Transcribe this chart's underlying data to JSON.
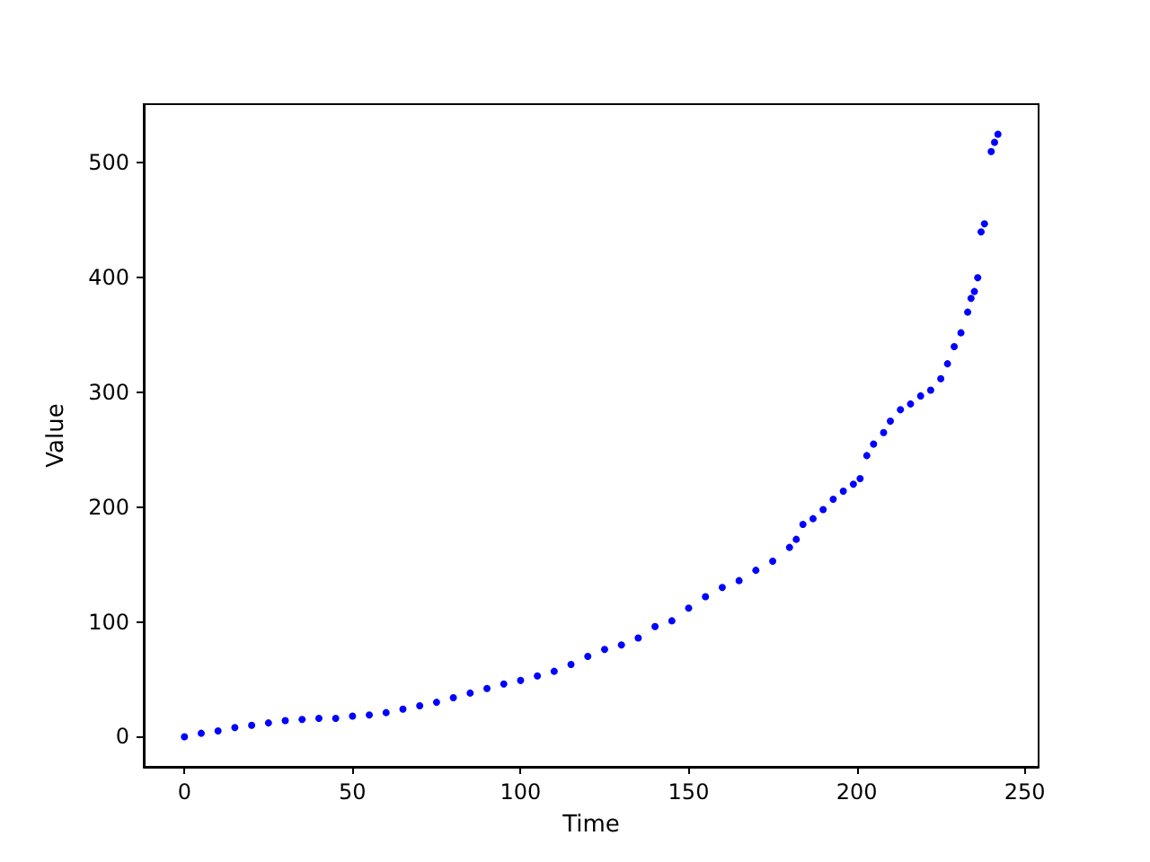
{
  "chart_data": {
    "type": "scatter",
    "xlabel": "Time",
    "ylabel": "Value",
    "color": "#0000ff",
    "marker": "circle",
    "xlim": [
      -12.1,
      254.1
    ],
    "ylim": [
      -26.25,
      551.25
    ],
    "xticks": [
      0,
      50,
      100,
      150,
      200,
      250
    ],
    "yticks": [
      0,
      100,
      200,
      300,
      400,
      500
    ],
    "x": [
      0,
      5,
      10,
      15,
      20,
      25,
      30,
      35,
      40,
      45,
      50,
      55,
      60,
      65,
      70,
      75,
      80,
      85,
      90,
      95,
      100,
      105,
      110,
      115,
      120,
      125,
      130,
      135,
      140,
      145,
      150,
      155,
      160,
      165,
      170,
      175,
      180,
      182,
      184,
      187,
      190,
      193,
      196,
      199,
      201,
      203,
      205,
      208,
      210,
      213,
      216,
      219,
      222,
      225,
      227,
      229,
      231,
      233,
      234,
      235,
      236,
      237,
      238,
      240,
      241,
      242
    ],
    "values": [
      0,
      3,
      5,
      8,
      10,
      12,
      14,
      15,
      16,
      16,
      18,
      19,
      21,
      24,
      27,
      30,
      34,
      38,
      42,
      46,
      49,
      53,
      57,
      63,
      70,
      76,
      80,
      86,
      96,
      101,
      112,
      122,
      130,
      136,
      145,
      153,
      165,
      172,
      185,
      190,
      198,
      207,
      214,
      220,
      225,
      245,
      255,
      265,
      275,
      285,
      290,
      297,
      302,
      312,
      325,
      340,
      352,
      370,
      382,
      388,
      400,
      440,
      447,
      510,
      518,
      525
    ]
  }
}
